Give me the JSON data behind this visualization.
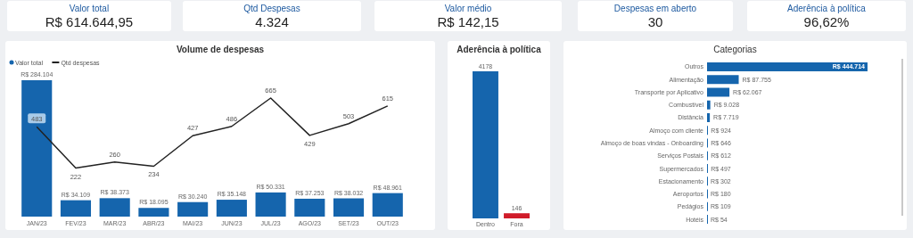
{
  "chart_data": [
    {
      "type": "other",
      "title": "Valor total",
      "annotations": [
        "R$ 614.644,95"
      ]
    },
    {
      "type": "other",
      "title": "Qtd Despesas",
      "annotations": [
        "4.324"
      ]
    },
    {
      "type": "other",
      "title": "Valor médio",
      "annotations": [
        "R$ 142,15"
      ]
    },
    {
      "type": "other",
      "title": "Despesas em aberto",
      "annotations": [
        "30"
      ]
    },
    {
      "type": "other",
      "title": "Aderência à política",
      "annotations": [
        "96,62%"
      ]
    },
    {
      "type": "bar",
      "title": "Volume de despesas",
      "legend": "top left",
      "categories": [
        "JAN/23",
        "FEV/23",
        "MAR/23",
        "ABR/23",
        "MAI/23",
        "JUN/23",
        "JUL/23",
        "AGO/23",
        "SET/23",
        "OUT/23"
      ],
      "series": [
        {
          "name": "Valor total",
          "type": "bar",
          "color": "#1565ad",
          "values": [
            284104,
            34109,
            38373,
            18095,
            30240,
            35148,
            50331,
            37253,
            38032,
            48961
          ],
          "value_labels": [
            "R$ 284.104",
            "R$ 34.109",
            "R$ 38.373",
            "R$ 18.095",
            "R$ 30.240",
            "R$ 35.148",
            "R$ 50.331",
            "R$ 37.253",
            "R$ 38.032",
            "R$ 48.961"
          ]
        },
        {
          "name": "Qtd despesas",
          "type": "line",
          "axis": "y2",
          "color": "#222222",
          "marker": "none",
          "values": [
            483,
            222,
            260,
            234,
            427,
            486,
            665,
            429,
            503,
            615
          ],
          "value_labels": [
            "483",
            "222",
            "260",
            "234",
            "427",
            "486",
            "665",
            "429",
            "503",
            "615"
          ]
        }
      ]
    },
    {
      "type": "bar",
      "title": "Aderência à política",
      "categories": [
        "Dentro",
        "Fora"
      ],
      "values": [
        4178,
        146
      ],
      "colors": [
        "#1565ad",
        "#d01c2a"
      ],
      "data_labels": true
    },
    {
      "type": "bar",
      "title": "Categorias",
      "orientation": "horizontal",
      "color": "#1565ad",
      "categories": [
        "Outros",
        "Alimentação",
        "Transporte por Aplicativo",
        "Combustível",
        "Distância",
        "Almoço com cliente",
        "Almoço de boas vindas - Onboarding",
        "Serviços Postais",
        "Supermercados",
        "Estacionamento",
        "Aeroportos",
        "Pedágios",
        "Hotéis"
      ],
      "values": [
        444714,
        87755,
        62067,
        9028,
        7719,
        924,
        646,
        612,
        497,
        302,
        180,
        109,
        54
      ],
      "value_labels": [
        "R$ 444.714",
        "R$ 87.755",
        "R$ 62.067",
        "R$ 9.028",
        "R$ 7.719",
        "R$ 924",
        "R$ 646",
        "R$ 612",
        "R$ 497",
        "R$ 302",
        "R$ 180",
        "R$ 109",
        "R$ 54"
      ]
    }
  ]
}
